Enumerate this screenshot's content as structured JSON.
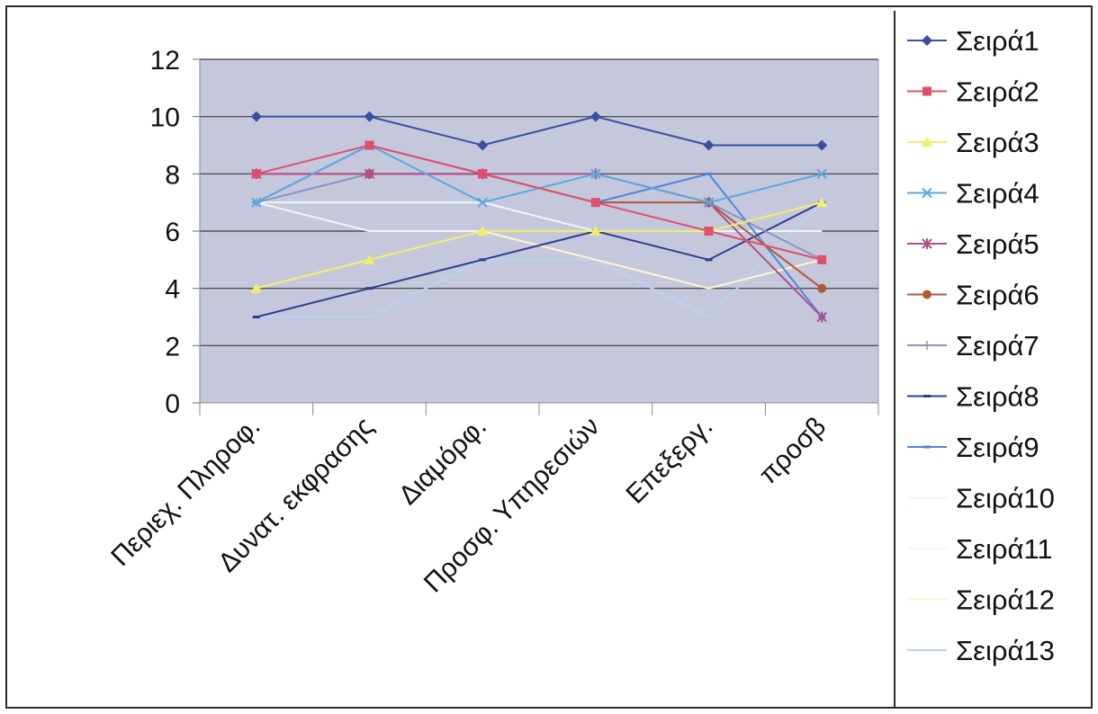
{
  "chart_data": {
    "type": "line",
    "title": "",
    "xlabel": "",
    "ylabel": "",
    "categories": [
      "Περιεχ. Πληροφ.",
      "Δυνατ. εκφρασης",
      "Διαμόρφ.",
      "Προσφ. Υπηρεσιών",
      "Επεξεργ.",
      "προσβ"
    ],
    "ylim": [
      0,
      12
    ],
    "yticks": [
      0,
      2,
      4,
      6,
      8,
      10,
      12
    ],
    "grid": true,
    "legend_position": "right",
    "series": [
      {
        "name": "Σειρά1",
        "color": "#3a4fa0",
        "marker": "diamond",
        "values": [
          10,
          10,
          9,
          10,
          9,
          9
        ]
      },
      {
        "name": "Σειρά2",
        "color": "#e0506a",
        "marker": "square",
        "values": [
          8,
          9,
          8,
          7,
          6,
          5
        ]
      },
      {
        "name": "Σειρά3",
        "color": "#f2ee6a",
        "marker": "triangle",
        "values": [
          4,
          5,
          6,
          6,
          6,
          7
        ]
      },
      {
        "name": "Σειρά4",
        "color": "#5aa8e0",
        "marker": "x",
        "values": [
          7,
          9,
          7,
          8,
          7,
          8
        ]
      },
      {
        "name": "Σειρά5",
        "color": "#b0508a",
        "marker": "star",
        "values": [
          8,
          8,
          8,
          8,
          7,
          3
        ]
      },
      {
        "name": "Σειρά6",
        "color": "#b05a3a",
        "marker": "circle",
        "values": [
          8,
          8,
          8,
          7,
          7,
          4
        ]
      },
      {
        "name": "Σειρά7",
        "color": "#8a94c0",
        "marker": "plus",
        "values": [
          7,
          8,
          8,
          7,
          7,
          5
        ]
      },
      {
        "name": "Σειρά8",
        "color": "#2f3f90",
        "marker": "dash",
        "values": [
          3,
          4,
          5,
          6,
          5,
          7
        ]
      },
      {
        "name": "Σειρά9",
        "color": "#4f86d8",
        "marker": "dash",
        "values": [
          7,
          9,
          8,
          7,
          8,
          3
        ]
      },
      {
        "name": "Σειρά10",
        "color": "#ecf6fa",
        "marker": "none",
        "values": [
          7,
          7,
          7,
          6,
          6,
          6
        ]
      },
      {
        "name": "Σειρά11",
        "color": "#f4f4fa",
        "marker": "none",
        "values": [
          7,
          6,
          6,
          6,
          6,
          6
        ]
      },
      {
        "name": "Σειρά12",
        "color": "#fff4cc",
        "marker": "none",
        "values": [
          4,
          5,
          6,
          5,
          4,
          5
        ]
      },
      {
        "name": "Σειρά13",
        "color": "#b7d4f4",
        "marker": "none",
        "values": [
          3,
          3,
          5,
          5,
          3,
          7
        ]
      }
    ]
  }
}
